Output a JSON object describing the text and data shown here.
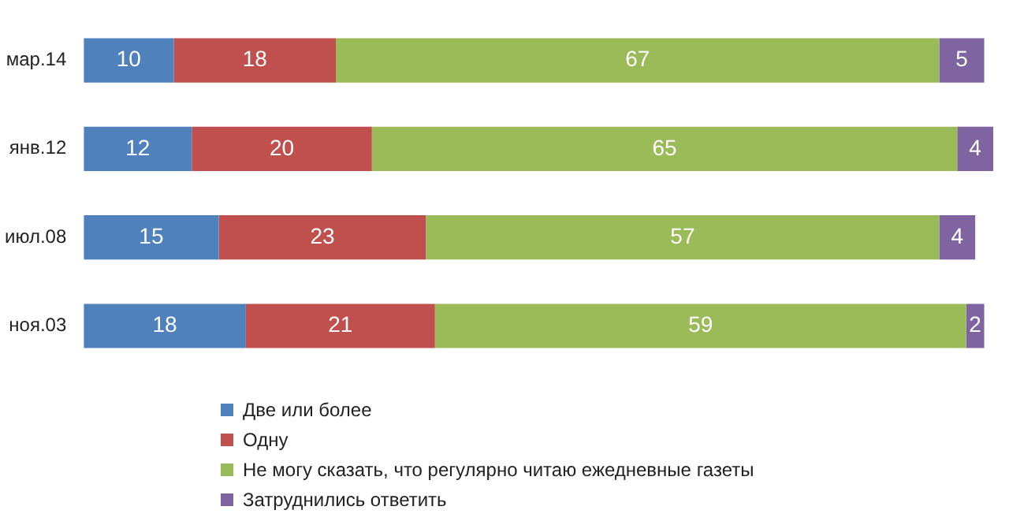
{
  "chart_data": {
    "type": "bar",
    "orientation": "horizontal",
    "stacked": true,
    "data_labels": true,
    "legend": "bottom",
    "categories": [
      "мар.14",
      "янв.12",
      "июл.08",
      "ноя.03"
    ],
    "series": [
      {
        "name": "Две или более",
        "color": "#4f81bd",
        "values": [
          10,
          12,
          15,
          18
        ]
      },
      {
        "name": "Одну",
        "color": "#c0504d",
        "values": [
          18,
          20,
          23,
          21
        ]
      },
      {
        "name": "Не могу сказать, что регулярно читаю ежедневные газеты",
        "color": "#9bbb59",
        "values": [
          67,
          65,
          57,
          59
        ]
      },
      {
        "name": "Затруднились ответить",
        "color": "#8064a2",
        "values": [
          5,
          4,
          4,
          2
        ]
      }
    ]
  }
}
